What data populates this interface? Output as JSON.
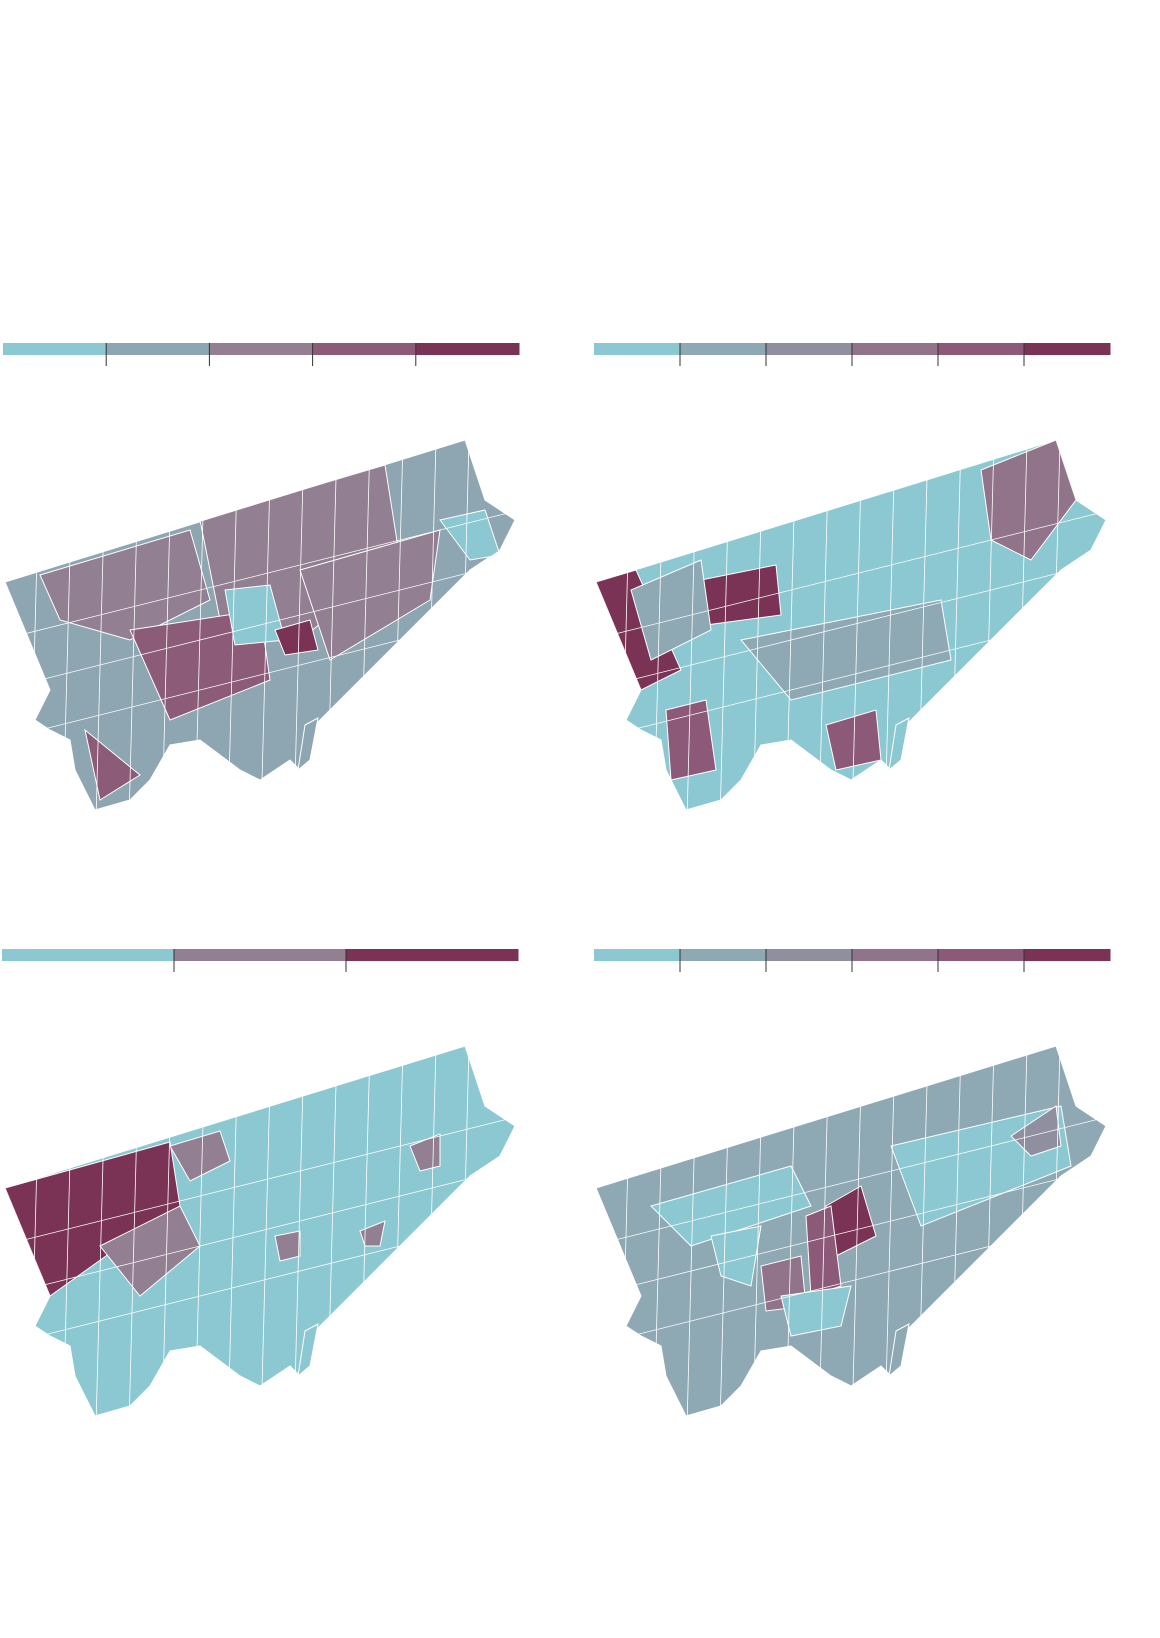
{
  "maps": [
    {
      "legend_colors": [
        "#8cc8d2",
        "#8ea5b2",
        "#927f92",
        "#8c5b78",
        "#7a3354"
      ],
      "base_color": 1
    },
    {
      "legend_colors": [
        "#8cc8d2",
        "#8ea8b4",
        "#8f8fa0",
        "#917489",
        "#8c5a78",
        "#7a3354"
      ],
      "base_color": 0
    },
    {
      "legend_colors": [
        "#8cc8d2",
        "#927f92",
        "#7a3354"
      ],
      "base_color": 0
    },
    {
      "legend_colors": [
        "#8cc8d2",
        "#8ea8b4",
        "#8f8fa0",
        "#917489",
        "#8c5a78",
        "#7a3354"
      ],
      "base_color": 1
    }
  ]
}
